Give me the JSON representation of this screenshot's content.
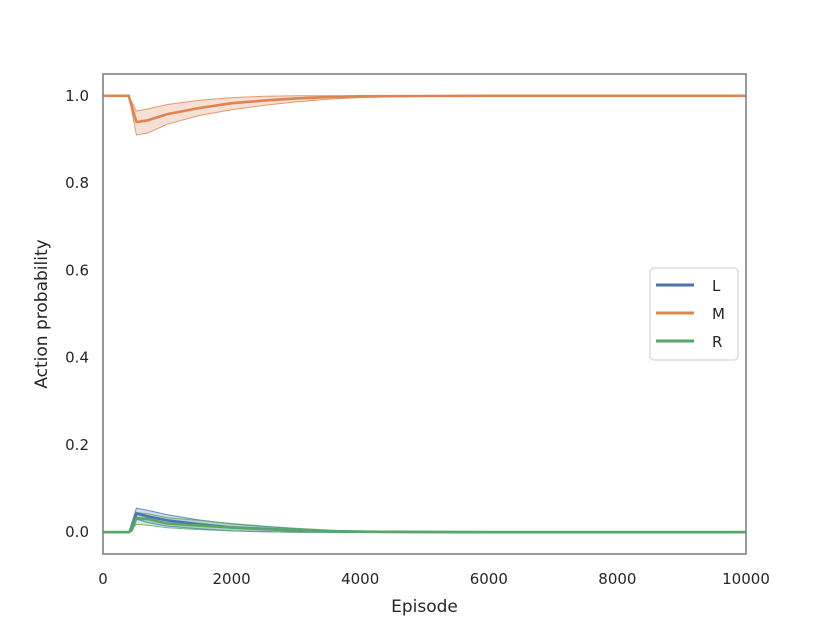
{
  "chart_data": {
    "type": "line",
    "title": "",
    "xlabel": "Episode",
    "ylabel": "Action probability",
    "xlim": [
      0,
      10000
    ],
    "ylim": [
      -0.05,
      1.05
    ],
    "xticks": [
      0,
      2000,
      4000,
      6000,
      8000,
      10000
    ],
    "xtick_labels": [
      "0",
      "2000",
      "4000",
      "6000",
      "8000",
      "10000"
    ],
    "yticks": [
      0.0,
      0.2,
      0.4,
      0.6,
      0.8,
      1.0
    ],
    "ytick_labels": [
      "0.0",
      "0.2",
      "0.4",
      "0.6",
      "0.8",
      "1.0"
    ],
    "grid": false,
    "legend": {
      "position": "center-right"
    },
    "series": [
      {
        "name": "L",
        "color": "#4c72b0",
        "points": [
          [
            0,
            0
          ],
          [
            400,
            0
          ],
          [
            450,
            0.005
          ],
          [
            520,
            0.043
          ],
          [
            700,
            0.036
          ],
          [
            1000,
            0.027
          ],
          [
            1500,
            0.018
          ],
          [
            2000,
            0.011
          ],
          [
            2500,
            0.007
          ],
          [
            3000,
            0.004
          ],
          [
            3500,
            0.002
          ],
          [
            4000,
            0.001
          ],
          [
            5000,
            0.0005
          ],
          [
            6000,
            0
          ],
          [
            10000,
            0
          ]
        ],
        "band": [
          [
            0,
            0,
            0
          ],
          [
            400,
            0,
            0
          ],
          [
            520,
            0.03,
            0.055
          ],
          [
            700,
            0.022,
            0.05
          ],
          [
            1000,
            0.014,
            0.04
          ],
          [
            1500,
            0.008,
            0.028
          ],
          [
            2000,
            0.003,
            0.019
          ],
          [
            2500,
            0.001,
            0.013
          ],
          [
            3000,
            0,
            0.008
          ],
          [
            3500,
            0,
            0.004
          ],
          [
            4000,
            0,
            0.002
          ],
          [
            5000,
            0,
            0.001
          ],
          [
            6000,
            0,
            0
          ],
          [
            10000,
            0,
            0
          ]
        ]
      },
      {
        "name": "M",
        "color": "#dd8452",
        "points": [
          [
            0,
            1.0
          ],
          [
            400,
            1.0
          ],
          [
            450,
            0.975
          ],
          [
            520,
            0.94
          ],
          [
            700,
            0.944
          ],
          [
            1000,
            0.958
          ],
          [
            1500,
            0.972
          ],
          [
            2000,
            0.983
          ],
          [
            2500,
            0.989
          ],
          [
            3000,
            0.994
          ],
          [
            3500,
            0.997
          ],
          [
            4000,
            0.999
          ],
          [
            5000,
            0.9995
          ],
          [
            6000,
            1.0
          ],
          [
            10000,
            1.0
          ]
        ],
        "band": [
          [
            0,
            1.0,
            1.0
          ],
          [
            400,
            1.0,
            1.0
          ],
          [
            520,
            0.91,
            0.965
          ],
          [
            700,
            0.915,
            0.97
          ],
          [
            1000,
            0.935,
            0.98
          ],
          [
            1500,
            0.955,
            0.99
          ],
          [
            2000,
            0.968,
            0.996
          ],
          [
            2500,
            0.978,
            0.999
          ],
          [
            3000,
            0.986,
            1.0
          ],
          [
            3500,
            0.992,
            1.0
          ],
          [
            4000,
            0.996,
            1.0
          ],
          [
            5000,
            0.999,
            1.0
          ],
          [
            6000,
            1.0,
            1.0
          ],
          [
            10000,
            1.0,
            1.0
          ]
        ]
      },
      {
        "name": "R",
        "color": "#55a868",
        "points": [
          [
            0,
            0
          ],
          [
            400,
            0
          ],
          [
            450,
            0.006
          ],
          [
            520,
            0.032
          ],
          [
            700,
            0.03
          ],
          [
            1000,
            0.02
          ],
          [
            1500,
            0.015
          ],
          [
            2000,
            0.011
          ],
          [
            2500,
            0.008
          ],
          [
            3000,
            0.004
          ],
          [
            3500,
            0.002
          ],
          [
            4000,
            0.001
          ],
          [
            5000,
            0.0005
          ],
          [
            6000,
            0
          ],
          [
            10000,
            0
          ]
        ],
        "band": [
          [
            0,
            0,
            0
          ],
          [
            400,
            0,
            0
          ],
          [
            520,
            0.018,
            0.045
          ],
          [
            700,
            0.016,
            0.042
          ],
          [
            1000,
            0.01,
            0.033
          ],
          [
            1500,
            0.006,
            0.027
          ],
          [
            2000,
            0.003,
            0.02
          ],
          [
            2500,
            0.001,
            0.014
          ],
          [
            3000,
            0,
            0.009
          ],
          [
            3500,
            0,
            0.005
          ],
          [
            4000,
            0,
            0.002
          ],
          [
            5000,
            0,
            0.001
          ],
          [
            6000,
            0,
            0
          ],
          [
            10000,
            0,
            0
          ]
        ]
      }
    ]
  }
}
